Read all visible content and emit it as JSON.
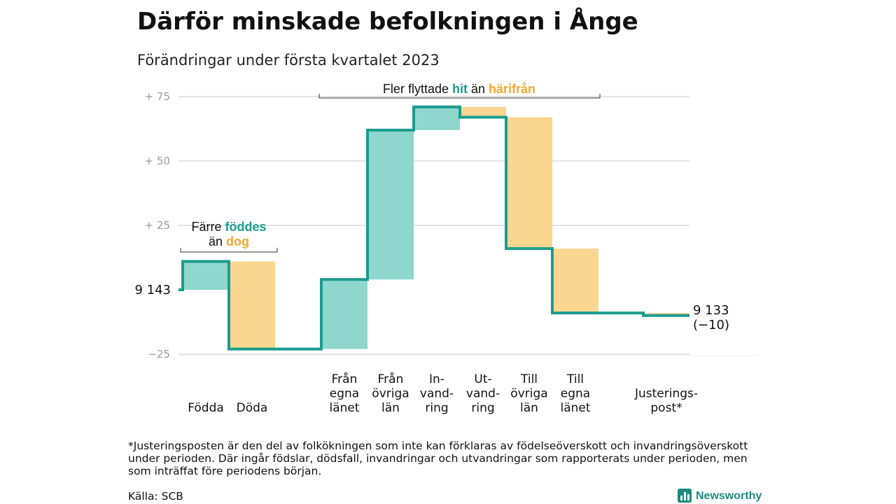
{
  "header": {
    "title": "Därför minskade befolkningen i Ånge",
    "subtitle": "Förändringar under första kvartalet 2023"
  },
  "chart_data": {
    "type": "waterfall",
    "title": "Därför minskade befolkningen i Ånge",
    "subtitle": "Förändringar under första kvartalet 2023",
    "start": {
      "label": "9 143",
      "population": 9143
    },
    "end": {
      "label_value": "9 133",
      "label_change": "(−10)",
      "population": 9133,
      "change": -10
    },
    "yticks": [
      {
        "value": 75,
        "label": "+ 75"
      },
      {
        "value": 50,
        "label": "+ 50"
      },
      {
        "value": 25,
        "label": "+ 25"
      },
      {
        "value": -25,
        "label": "−25"
      }
    ],
    "ylim": [
      -25,
      75
    ],
    "steps": [
      {
        "label": [
          "Födda"
        ],
        "kind": "in",
        "from": 0,
        "to": 11
      },
      {
        "label": [
          "Döda"
        ],
        "kind": "out",
        "from": 11,
        "to": -23
      },
      {
        "label": [
          "Från",
          "egna",
          "länet"
        ],
        "kind": "in",
        "from": -23,
        "to": 4
      },
      {
        "label": [
          "Från",
          "övriga",
          "län"
        ],
        "kind": "in",
        "from": 4,
        "to": 62
      },
      {
        "label": [
          "In-",
          "vand-",
          "ring"
        ],
        "kind": "in",
        "from": 62,
        "to": 71
      },
      {
        "label": [
          "Ut-",
          "vand-",
          "ring"
        ],
        "kind": "out",
        "from": 71,
        "to": 67
      },
      {
        "label": [
          "Till",
          "övriga",
          "län"
        ],
        "kind": "out",
        "from": 67,
        "to": 16
      },
      {
        "label": [
          "Till",
          "egna",
          "länet"
        ],
        "kind": "out",
        "from": 16,
        "to": -9
      },
      {
        "label": [
          "Justerings-",
          "post*"
        ],
        "kind": "out",
        "from": -9,
        "to": -10
      }
    ],
    "annotations": {
      "births": {
        "line1_pre": "Färre ",
        "line1_em": "föddes",
        "line2_pre": "än ",
        "line2_em": "dog"
      },
      "moves": {
        "pre": "Fler flyttade ",
        "em1": "hit",
        "mid": " än ",
        "em2": "härifrån"
      }
    },
    "colors": {
      "in": "#8fd6cc",
      "out": "#fad690",
      "line": "#1a9c8f",
      "grid": "#e3e3e3",
      "tick": "#9a9a9a"
    }
  },
  "footer": {
    "note_lines": [
      "*Justeringsposten är den del av folkökningen som inte kan förklaras av födelseöverskott och invandringsöverskott",
      "under perioden. Där ingår födslar, dödsfall, invandringar och utvandringar som rapporterats under perioden, men",
      "som inträffat före periodens början."
    ],
    "source": "Källa: SCB",
    "brand": "Newsworthy",
    "brand_icon": "bar-chart-icon"
  }
}
